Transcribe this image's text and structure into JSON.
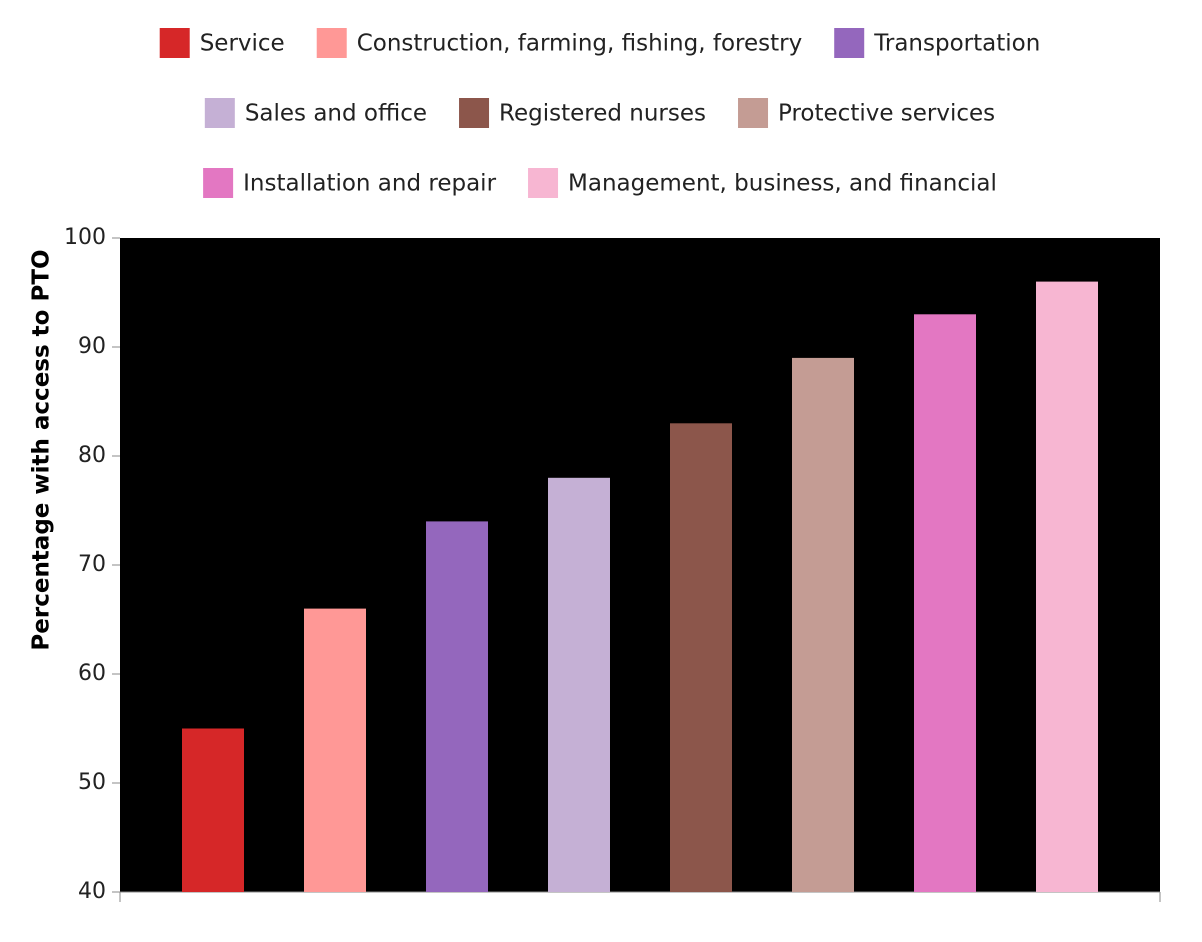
{
  "chart_data": {
    "type": "bar",
    "y_label": "Percentage with access to PTO",
    "series": [
      {
        "name": "Service",
        "color": "#d62728",
        "values": [
          55
        ]
      },
      {
        "name": "Construction, farming, fishing, forestry",
        "color": "#ff9896",
        "values": [
          66
        ]
      },
      {
        "name": "Transportation",
        "color": "#9467bd",
        "values": [
          74
        ]
      },
      {
        "name": "Sales and office",
        "color": "#c5b0d5",
        "values": [
          78
        ]
      },
      {
        "name": "Registered nurses",
        "color": "#8c564b",
        "values": [
          83
        ]
      },
      {
        "name": "Protective services",
        "color": "#c49c94",
        "values": [
          89
        ]
      },
      {
        "name": "Installation and repair",
        "color": "#e377c2",
        "values": [
          93
        ]
      },
      {
        "name": "Management, business, and financial",
        "color": "#f7b6d2",
        "values": [
          96
        ]
      }
    ],
    "ylim": [
      40,
      100
    ],
    "yticks": [
      40,
      50,
      60,
      70,
      80,
      90,
      100
    ],
    "plot_background": "#000000"
  }
}
